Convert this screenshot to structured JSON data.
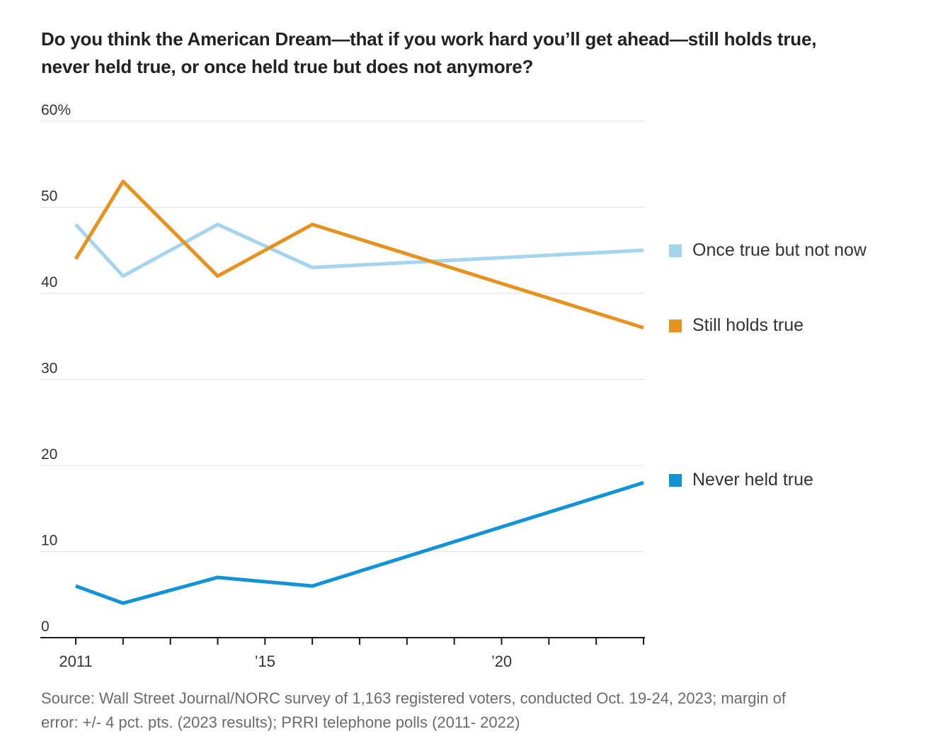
{
  "title": {
    "line1": "Do you think the American Dream—that if you work hard you’ll get ahead—still holds true,",
    "line2": "never held true, or once held true but does not anymore?"
  },
  "source": {
    "line1": "Source: Wall Street Journal/NORC survey of 1,163 registered voters, conducted Oct. 19-24, 2023; margin of",
    "line2": "error: +/- 4 pct. pts. (2023 results); PRRI telephone polls (2011- 2022)"
  },
  "chart_data": {
    "type": "line",
    "title": "Do you think the American Dream—that if you work hard you’ll get ahead—still holds true, never held true, or once held true but does not anymore?",
    "x": [
      2011,
      2012,
      2014,
      2016,
      2023
    ],
    "series": [
      {
        "name": "Once true but not now",
        "color": "#a5d4ef",
        "values": [
          48,
          42,
          48,
          43,
          45
        ]
      },
      {
        "name": "Still holds true",
        "color": "#e8921e",
        "values": [
          44,
          53,
          42,
          48,
          36
        ]
      },
      {
        "name": "Never held true",
        "color": "#1193d8",
        "values": [
          6,
          4,
          7,
          6,
          18
        ]
      }
    ],
    "xlim": [
      2011,
      2023
    ],
    "ylim": [
      0,
      60
    ],
    "yticks": [
      0,
      10,
      20,
      30,
      40,
      50,
      60
    ],
    "ytick_labels": [
      "0",
      "10",
      "20",
      "30",
      "40",
      "50",
      "60%"
    ],
    "xtick_years": [
      2011,
      2012,
      2013,
      2014,
      2015,
      2016,
      2017,
      2018,
      2019,
      2020,
      2021,
      2022,
      2023
    ],
    "xtick_labels": [
      {
        "year": 2011,
        "label": "2011"
      },
      {
        "year": 2015,
        "label": "’15"
      },
      {
        "year": 2020,
        "label": "’20"
      }
    ],
    "grid": "horizontal",
    "legend_position": "right"
  },
  "colors": {
    "axis": "#1a1a1a",
    "gridline": "#dfdfdf",
    "tick_label": "#333333",
    "title_text": "#222222",
    "source_text": "#6b6b6b",
    "background": "#ffffff"
  }
}
